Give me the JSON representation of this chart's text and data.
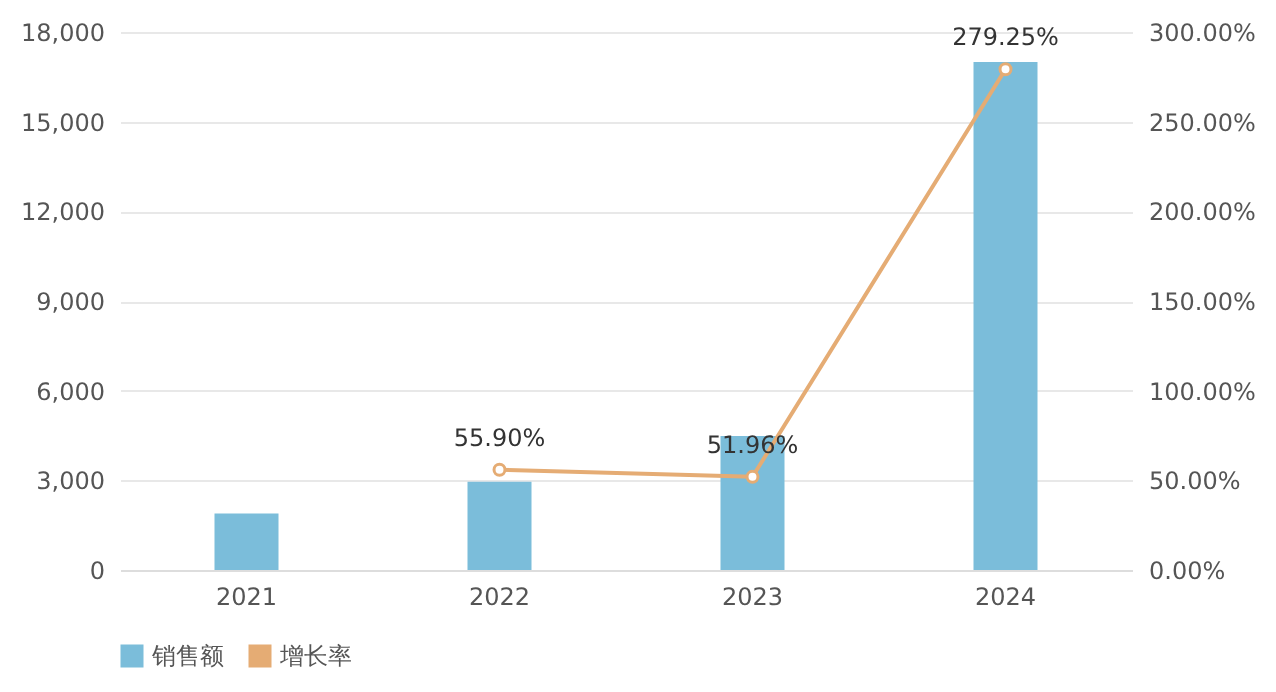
{
  "chart_data": {
    "type": "bar",
    "categories": [
      "2021",
      "2022",
      "2023",
      "2024"
    ],
    "series": [
      {
        "name": "销售额",
        "color": "#7bbdda",
        "values": [
          1890,
          2950,
          4480,
          17000
        ]
      },
      {
        "name": "增长率",
        "type": "line",
        "axis": "y2",
        "color": "#e5ac74",
        "values": [
          null,
          55.9,
          51.96,
          279.25
        ],
        "value_labels": [
          null,
          "55.90%",
          "51.96%",
          "279.25%"
        ],
        "marker": "circle"
      }
    ],
    "ylim": [
      0,
      18000
    ],
    "yticks": [
      0,
      {
        "value": 3000,
        "label": "3,000"
      },
      {
        "value": 6000,
        "label": "6,000"
      },
      {
        "value": 9000,
        "label": "9,000"
      },
      {
        "value": 12000,
        "label": "12,000"
      },
      {
        "value": 15000,
        "label": "15,000"
      },
      {
        "value": 18000,
        "label": "18,000"
      }
    ],
    "y2lim": [
      0,
      300
    ],
    "y2ticks": [
      {
        "value": 0,
        "label": "0.00%"
      },
      {
        "value": 50,
        "label": "50.00%"
      },
      {
        "value": 100,
        "label": "100.00%"
      },
      {
        "value": 150,
        "label": "150.00%"
      },
      {
        "value": 200,
        "label": "200.00%"
      },
      {
        "value": 250,
        "label": "250.00%"
      },
      {
        "value": 300,
        "label": "300.00%"
      }
    ],
    "grid": "y",
    "legend": "bottom"
  }
}
